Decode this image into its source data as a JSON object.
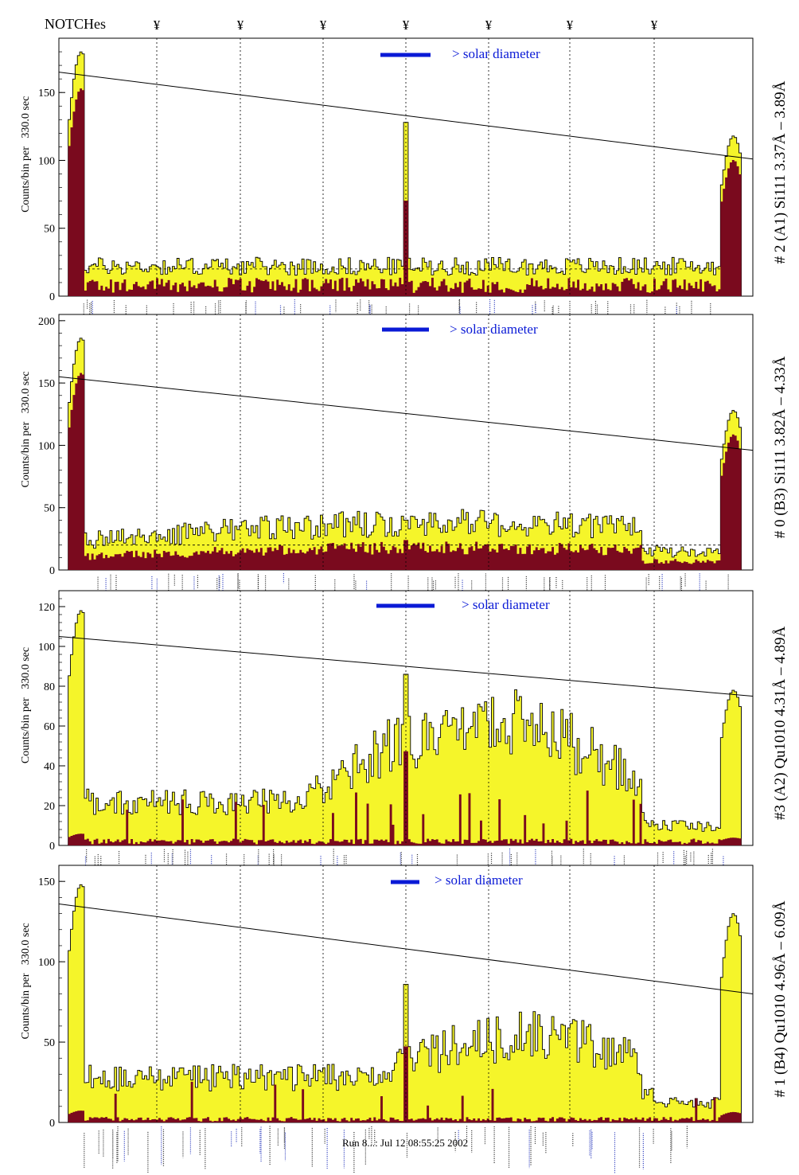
{
  "header": {
    "title": "NOTCHes",
    "notch_symbol": "¥"
  },
  "colors": {
    "fill_total": "#f5f52a",
    "fill_sub": "#7a0a1e",
    "line": "#000000",
    "legend_bar": "#0a1ad6",
    "legend_text": "#0a1ad6"
  },
  "footer": {
    "text": "Run 8...: Jul 12 08:55:25 2002"
  },
  "chart_data": [
    {
      "type": "bar",
      "panel_label": "# 2 (A1) Si111  3.37Å – 3.89Å",
      "ylabel": "Counts/bin per   330.0 sec",
      "ylim": [
        0,
        190
      ],
      "yticks": [
        0,
        50,
        100,
        150
      ],
      "legend": "> solar diameter",
      "trend_line": [
        165,
        101
      ],
      "dashed_ref": 20,
      "profile": {
        "edge_peak_left": 180,
        "edge_peak_right": 118,
        "center_spike": 128,
        "baseline_total": 22,
        "baseline_sub": 8
      }
    },
    {
      "type": "bar",
      "panel_label": "# 0 (B3) Si111  3.82Å – 4.33Å",
      "ylabel": "Counts/bin per   330.0 sec",
      "ylim": [
        0,
        205
      ],
      "yticks": [
        0,
        50,
        100,
        150,
        200
      ],
      "legend": "> solar diameter",
      "trend_line": [
        155,
        96
      ],
      "dashed_ref": 20,
      "profile": {
        "edge_peak_left": 186,
        "edge_peak_right": 128,
        "center_spike": 40,
        "baseline_total": 30,
        "baseline_sub": 12
      }
    },
    {
      "type": "bar",
      "panel_label": "#3 (A2) Qu1010  4.31Å – 4.89Å",
      "ylabel": "Counts/bin per   330.0 sec",
      "ylim": [
        0,
        128
      ],
      "yticks": [
        0,
        20,
        40,
        60,
        80,
        100,
        120
      ],
      "legend": "> solar diameter",
      "trend_line": [
        105,
        75
      ],
      "dashed_ref": 0,
      "profile": {
        "edge_peak_left": 118,
        "edge_peak_right": 78,
        "center_spike": 86,
        "baseline_total": 30,
        "baseline_sub": 2
      }
    },
    {
      "type": "bar",
      "panel_label": "# 1 (B4) Qu1010 4.96Å – 6.09Å",
      "ylabel": "Counts/bin per   330.0 sec",
      "ylim": [
        0,
        160
      ],
      "yticks": [
        0,
        50,
        100,
        150
      ],
      "legend": "> solar diameter",
      "trend_line": [
        136,
        80
      ],
      "dashed_ref": 0,
      "profile": {
        "edge_peak_left": 148,
        "edge_peak_right": 130,
        "center_spike": 86,
        "baseline_total": 28,
        "baseline_sub": 2
      }
    }
  ]
}
